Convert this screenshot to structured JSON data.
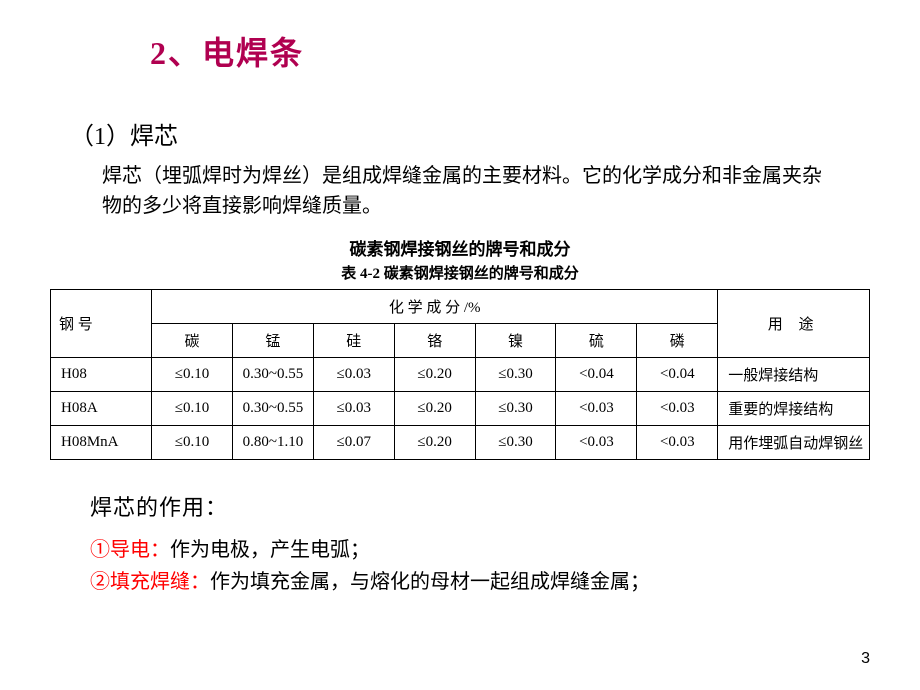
{
  "title": "2、电焊条",
  "subtitle": "（1）焊芯",
  "paragraph": "焊芯（埋弧焊时为焊丝）是组成焊缝金属的主要材料。它的化学成分和非金属夹杂物的多少将直接影响焊缝质量。",
  "table_title1": "碳素钢焊接钢丝的牌号和成分",
  "table_title2": "表 4-2  碳素钢焊接钢丝的牌号和成分",
  "table": {
    "header_id": "钢  号",
    "header_chem": "化 学 成 分 /%",
    "header_use": "用  途",
    "sub_headers": [
      "碳",
      "锰",
      "硅",
      "铬",
      "镍",
      "硫",
      "磷"
    ],
    "rows": [
      {
        "id": "H08",
        "cells": [
          "≤0.10",
          "0.30~0.55",
          "≤0.03",
          "≤0.20",
          "≤0.30",
          "<0.04",
          "<0.04"
        ],
        "use": "一般焊接结构"
      },
      {
        "id": "H08A",
        "cells": [
          "≤0.10",
          "0.30~0.55",
          "≤0.03",
          "≤0.20",
          "≤0.30",
          "<0.03",
          "<0.03"
        ],
        "use": "重要的焊接结构"
      },
      {
        "id": "H08MnA",
        "cells": [
          "≤0.10",
          "0.80~1.10",
          "≤0.07",
          "≤0.20",
          "≤0.30",
          "<0.03",
          "<0.03"
        ],
        "use": "用作埋弧自动焊钢丝"
      }
    ]
  },
  "section2_heading": "焊芯的作用：",
  "bullet1_red": "①导电：",
  "bullet1_rest": "作为电极，产生电弧；",
  "bullet2_red": "②填充焊缝：",
  "bullet2_rest": "作为填充金属，与熔化的母材一起组成焊缝金属；",
  "pagenum": "3",
  "colors": {
    "title": "#b00050",
    "red": "#ff0000",
    "border": "#000000",
    "bg": "#ffffff"
  }
}
